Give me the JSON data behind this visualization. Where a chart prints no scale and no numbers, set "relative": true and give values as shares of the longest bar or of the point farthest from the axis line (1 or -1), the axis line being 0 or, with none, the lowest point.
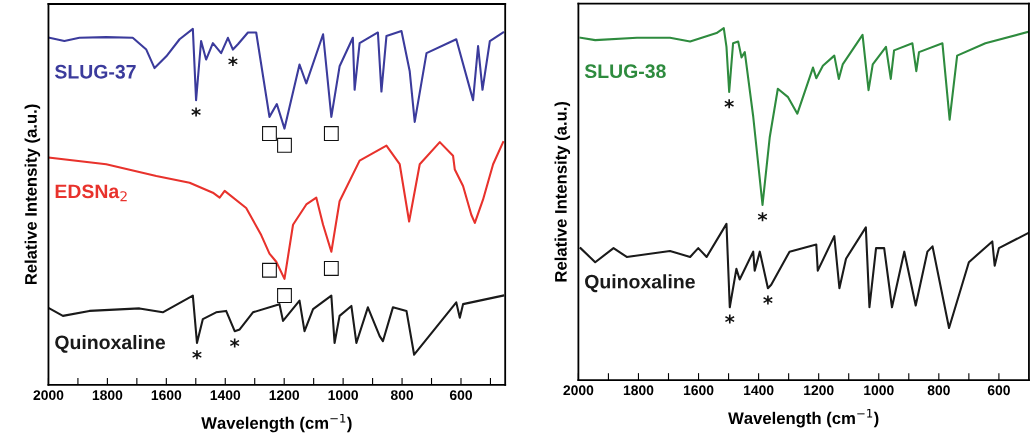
{
  "chart_data": [
    {
      "type": "line",
      "relative": true,
      "xlabel": "Wavelength (cm$^{−1}$)",
      "ylabel": "Relative Intensity (a.u.)",
      "tick_labels": "x",
      "grid": false,
      "legend": false,
      "xlim": [
        2000,
        450
      ],
      "xticks": [
        2000,
        {
          "value": 1900,
          "label": null
        },
        1800,
        {
          "value": 1700,
          "label": null
        },
        1600,
        {
          "value": 1500,
          "label": null
        },
        1400,
        {
          "value": 1300,
          "label": null
        },
        1200,
        {
          "value": 1100,
          "label": null
        },
        1000,
        {
          "value": 900,
          "label": null
        },
        800,
        {
          "value": 700,
          "label": null
        },
        600,
        {
          "value": 500,
          "label": null
        }
      ],
      "series": [
        {
          "name": "SLUG-37",
          "color": "#3b3b9c",
          "x": [
            1997,
            1946,
            1895,
            1804,
            1714,
            1668,
            1640,
            1600,
            1555,
            1510,
            1499,
            1482,
            1465,
            1442,
            1414,
            1391,
            1374,
            1357,
            1323,
            1295,
            1250,
            1225,
            1199,
            1148,
            1125,
            1068,
            1040,
            1012,
            967,
            961,
            944,
            882,
            870,
            853,
            802,
            774,
            757,
            717,
            616,
            559,
            542,
            527,
            502,
            457
          ],
          "values": [
            0.975,
            0.966,
            0.975,
            0.977,
            0.975,
            0.942,
            0.89,
            0.923,
            0.971,
            1.0,
            0.8,
            0.966,
            0.914,
            0.96,
            0.932,
            0.975,
            0.942,
            0.957,
            0.99,
            0.99,
            0.753,
            0.789,
            0.72,
            0.9,
            0.847,
            0.985,
            0.753,
            0.895,
            0.975,
            0.829,
            0.96,
            0.99,
            0.824,
            0.98,
            0.994,
            0.881,
            0.739,
            0.932,
            0.971,
            0.8,
            0.952,
            0.829,
            0.966,
            0.99
          ]
        },
        {
          "name": "EDSNa$_{2}$",
          "color": "#e8322c",
          "x": [
            2000,
            1804,
            1634,
            1521,
            1442,
            1419,
            1402,
            1329,
            1278,
            1250,
            1227,
            1199,
            1170,
            1125,
            1091,
            1068,
            1040,
            1012,
            944,
            853,
            808,
            776,
            740,
            672,
            627,
            621,
            593,
            565,
            553,
            525,
            491,
            457
          ],
          "values": [
            0.639,
            0.62,
            0.587,
            0.568,
            0.54,
            0.526,
            0.545,
            0.497,
            0.421,
            0.369,
            0.346,
            0.298,
            0.45,
            0.507,
            0.526,
            0.45,
            0.374,
            0.516,
            0.63,
            0.672,
            0.62,
            0.459,
            0.62,
            0.682,
            0.644,
            0.605,
            0.559,
            0.478,
            0.455,
            0.521,
            0.62,
            0.682
          ]
        },
        {
          "name": "Quinoxaline",
          "color": "#1a1a1a",
          "x": [
            1997,
            1951,
            1861,
            1691,
            1612,
            1510,
            1496,
            1476,
            1431,
            1397,
            1368,
            1351,
            1306,
            1216,
            1204,
            1148,
            1131,
            1102,
            1040,
            1029,
            1012,
            972,
            955,
            916,
            876,
            865,
            831,
            785,
            759,
            616,
            604,
            593,
            457
          ],
          "values": [
            0.215,
            0.194,
            0.208,
            0.215,
            0.204,
            0.251,
            0.118,
            0.185,
            0.204,
            0.208,
            0.151,
            0.156,
            0.204,
            0.227,
            0.18,
            0.237,
            0.151,
            0.213,
            0.251,
            0.118,
            0.194,
            0.222,
            0.118,
            0.218,
            0.137,
            0.123,
            0.218,
            0.208,
            0.085,
            0.232,
            0.189,
            0.227,
            0.251
          ]
        }
      ],
      "annotations": [
        {
          "text": "*",
          "x": 1499,
          "y": 0.8
        },
        {
          "text": "*",
          "x": 1374,
          "y": 0.942
        },
        {
          "text": "□",
          "x": 1250,
          "y": 0.753
        },
        {
          "text": "□",
          "x": 1199,
          "y": 0.72
        },
        {
          "text": "□",
          "x": 1040,
          "y": 0.753
        },
        {
          "text": "□",
          "x": 1040,
          "y": 0.374
        },
        {
          "text": "□",
          "x": 1250,
          "y": 0.369
        },
        {
          "text": "□",
          "x": 1199,
          "y": 0.298
        },
        {
          "text": "*",
          "x": 1496,
          "y": 0.118
        },
        {
          "text": "*",
          "x": 1368,
          "y": 0.151
        }
      ]
    },
    {
      "type": "line",
      "relative": true,
      "xlabel": "Wavelength (cm$^{−1}$)",
      "ylabel": "Relative Intensity (a.u.)",
      "tick_labels": "x",
      "grid": false,
      "legend": false,
      "xlim": [
        2000,
        500
      ],
      "xticks": [
        2000,
        {
          "value": 1900,
          "label": null
        },
        1800,
        {
          "value": 1700,
          "label": null
        },
        1600,
        {
          "value": 1500,
          "label": null
        },
        1400,
        {
          "value": 1300,
          "label": null
        },
        1200,
        {
          "value": 1100,
          "label": null
        },
        1000,
        {
          "value": 900,
          "label": null
        },
        800,
        {
          "value": 700,
          "label": null
        },
        600
      ],
      "series": [
        {
          "name": "SLUG-38",
          "color": "#2e8b3e",
          "x": [
            1993,
            1944,
            1805,
            1695,
            1628,
            1540,
            1516,
            1507,
            1498,
            1485,
            1468,
            1457,
            1446,
            1418,
            1387,
            1363,
            1336,
            1302,
            1271,
            1219,
            1208,
            1186,
            1148,
            1133,
            1120,
            1054,
            1034,
            1020,
            976,
            960,
            949,
            888,
            875,
            866,
            788,
            764,
            739,
            645,
            500
          ],
          "values": [
            0.973,
            0.966,
            0.973,
            0.973,
            0.962,
            0.986,
            1.0,
            0.947,
            0.819,
            0.957,
            0.962,
            0.917,
            0.932,
            0.749,
            0.498,
            0.69,
            0.828,
            0.804,
            0.757,
            0.888,
            0.858,
            0.893,
            0.922,
            0.856,
            0.897,
            0.981,
            0.824,
            0.897,
            0.947,
            0.856,
            0.937,
            0.957,
            0.878,
            0.932,
            0.957,
            0.74,
            0.922,
            0.957,
            0.99
          ]
        },
        {
          "name": "Quinoxaline",
          "color": "#1a1a1a",
          "x": [
            1993,
            1944,
            1883,
            1839,
            1695,
            1628,
            1601,
            1573,
            1507,
            1496,
            1474,
            1463,
            1418,
            1413,
            1396,
            1369,
            1358,
            1297,
            1208,
            1203,
            1148,
            1131,
            1109,
            1043,
            1031,
            1009,
            982,
            956,
            915,
            877,
            838,
            821,
            766,
            700,
            622,
            614,
            600,
            500
          ],
          "values": [
            0.375,
            0.335,
            0.375,
            0.35,
            0.367,
            0.35,
            0.375,
            0.35,
            0.444,
            0.207,
            0.316,
            0.286,
            0.365,
            0.311,
            0.365,
            0.261,
            0.271,
            0.365,
            0.385,
            0.311,
            0.409,
            0.261,
            0.345,
            0.434,
            0.207,
            0.375,
            0.375,
            0.207,
            0.365,
            0.212,
            0.365,
            0.38,
            0.148,
            0.335,
            0.394,
            0.325,
            0.375,
            0.419
          ]
        }
      ],
      "annotations": [
        {
          "text": "*",
          "x": 1498,
          "y": 0.819
        },
        {
          "text": "*",
          "x": 1387,
          "y": 0.498
        },
        {
          "text": "*",
          "x": 1496,
          "y": 0.207
        },
        {
          "text": "*",
          "x": 1369,
          "y": 0.261
        }
      ]
    }
  ]
}
